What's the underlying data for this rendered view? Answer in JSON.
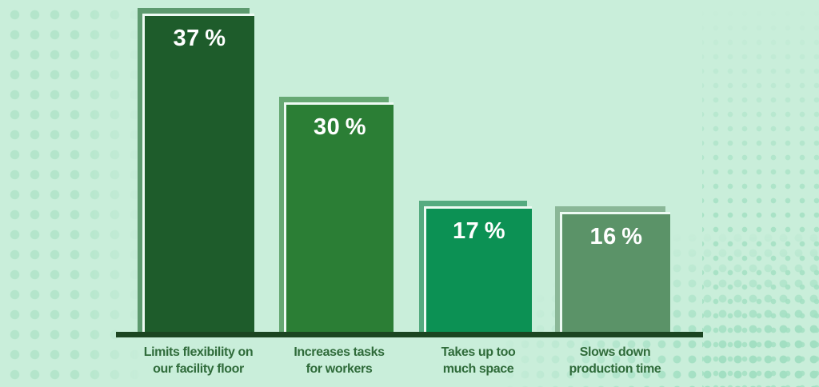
{
  "chart_data": {
    "type": "bar",
    "title": "",
    "categories": [
      "Limits flexibility on our facility floor",
      "Increases tasks for workers",
      "Takes up too much space",
      "Slows down production time"
    ],
    "values": [
      37,
      30,
      17,
      16
    ],
    "unit": "%",
    "ylim": [
      0,
      40
    ],
    "grid": false,
    "legend_position": "none",
    "xlabel": "",
    "ylabel": ""
  },
  "bars": [
    {
      "value_label": "37 %",
      "line1": "Limits flexibility on",
      "line2": "our facility floor",
      "fill": "#1e5c2b",
      "shadow": "#5d9a6f"
    },
    {
      "value_label": "30 %",
      "line1": "Increases tasks",
      "line2": "for workers",
      "fill": "#2b7e35",
      "shadow": "#66a873"
    },
    {
      "value_label": "17 %",
      "line1": "Takes up too",
      "line2": "much space",
      "fill": "#0c9154",
      "shadow": "#55ab80"
    },
    {
      "value_label": "16 %",
      "line1": "Slows down",
      "line2": "production time",
      "fill": "#5b9368",
      "shadow": "#8ab797"
    }
  ],
  "colors": {
    "background": "#c9eeda",
    "dot_pattern": "#aee3c9",
    "axis_line": "#1b4521",
    "value_text": "#ffffff",
    "label_text": "#2f6b3a",
    "bar_edge_highlight": "#edfaf3"
  }
}
